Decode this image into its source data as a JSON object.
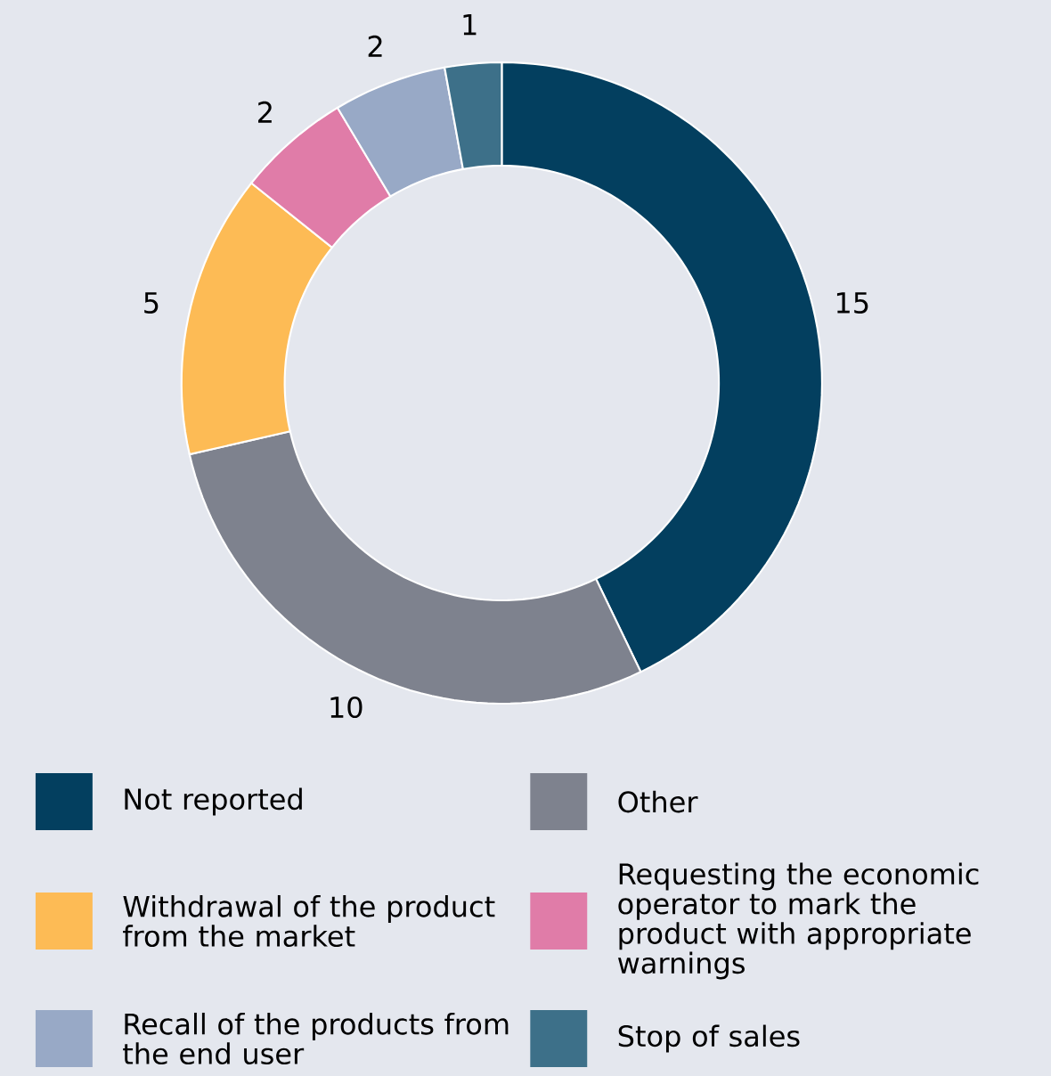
{
  "chart_data": {
    "type": "donut",
    "categories": [
      "Not reported",
      "Other",
      "Withdrawal of the product from the market",
      "Requesting the economic operator to mark the product with appropriate warnings",
      "Recall of the products from the end user",
      "Stop of sales"
    ],
    "values": [
      15,
      10,
      5,
      2,
      2,
      1
    ],
    "colors": [
      "#033f5f",
      "#7e828e",
      "#fdbb55",
      "#e07ca8",
      "#98a9c6",
      "#3d7089"
    ],
    "data_labels": true,
    "legend": "bottom"
  }
}
